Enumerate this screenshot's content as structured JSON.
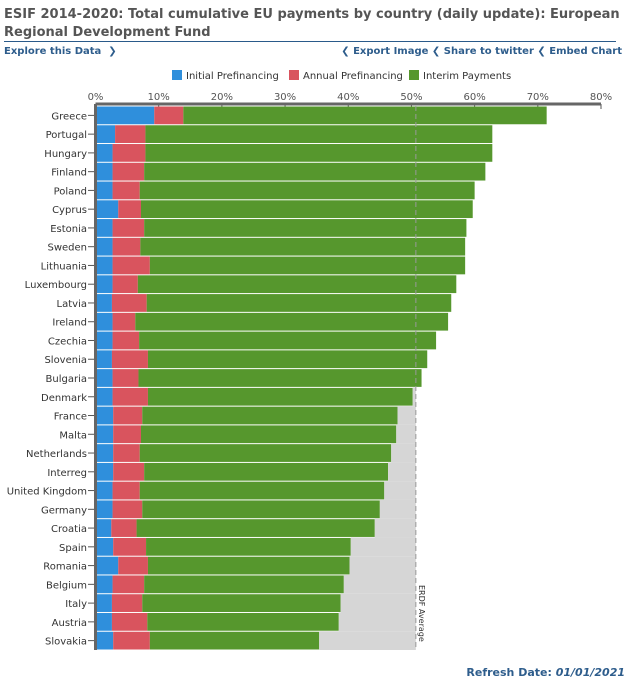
{
  "header": {
    "title": "ESIF 2014-2020: Total cumulative EU payments by country (daily update): European Regional Development Fund"
  },
  "links": {
    "explore": "Explore this Data",
    "export": "Export Image",
    "twitter": "Share to twitter",
    "embed": "Embed Chart"
  },
  "footer": {
    "label": "Refresh Date:",
    "date": "01/01/2021"
  },
  "chart_data": {
    "type": "bar",
    "orientation": "horizontal",
    "stacked": true,
    "legend_position": "top",
    "xlim": [
      0,
      80
    ],
    "x_ticks": [
      "0%",
      "10%",
      "20%",
      "30%",
      "40%",
      "50%",
      "60%",
      "70%",
      "80%"
    ],
    "categories": [
      "Greece",
      "Portugal",
      "Hungary",
      "Finland",
      "Poland",
      "Cyprus",
      "Estonia",
      "Sweden",
      "Lithuania",
      "Luxembourg",
      "Latvia",
      "Ireland",
      "Czechia",
      "Slovenia",
      "Bulgaria",
      "Denmark",
      "France",
      "Malta",
      "Netherlands",
      "Interreg",
      "United Kingdom",
      "Germany",
      "Croatia",
      "Spain",
      "Romania",
      "Belgium",
      "Italy",
      "Austria",
      "Slovakia"
    ],
    "series": [
      {
        "name": "Initial Prefinancing",
        "color": "#2f8fdc",
        "values": [
          9.3,
          3.1,
          2.7,
          2.7,
          2.7,
          3.6,
          2.7,
          2.7,
          2.7,
          2.7,
          2.6,
          2.7,
          2.7,
          2.6,
          2.7,
          2.7,
          2.8,
          2.8,
          2.8,
          2.8,
          2.7,
          2.7,
          2.5,
          2.8,
          3.6,
          2.7,
          2.6,
          2.6,
          2.8
        ]
      },
      {
        "name": "Annual Prefinancing",
        "color": "#d9545e",
        "values": [
          4.6,
          4.8,
          5.2,
          5.0,
          4.3,
          3.6,
          5.0,
          4.4,
          5.9,
          4.0,
          5.5,
          3.6,
          4.2,
          5.7,
          4.1,
          5.6,
          4.6,
          4.4,
          4.2,
          4.9,
          4.3,
          4.7,
          4.0,
          5.2,
          4.7,
          5.0,
          4.8,
          5.6,
          5.8
        ]
      },
      {
        "name": "Interim Payments",
        "color": "#56972d",
        "values": [
          57.5,
          54.9,
          54.9,
          54.0,
          53.0,
          52.5,
          51.0,
          51.4,
          49.9,
          50.4,
          48.2,
          49.5,
          47.0,
          44.2,
          44.8,
          41.9,
          40.4,
          40.4,
          39.8,
          38.6,
          38.7,
          37.6,
          37.7,
          32.4,
          31.9,
          31.6,
          31.4,
          30.3,
          26.8
        ]
      }
    ],
    "reference_line": {
      "label": "ERDF Average",
      "value": 50.7,
      "fill_color": "#d6d6d6"
    }
  }
}
